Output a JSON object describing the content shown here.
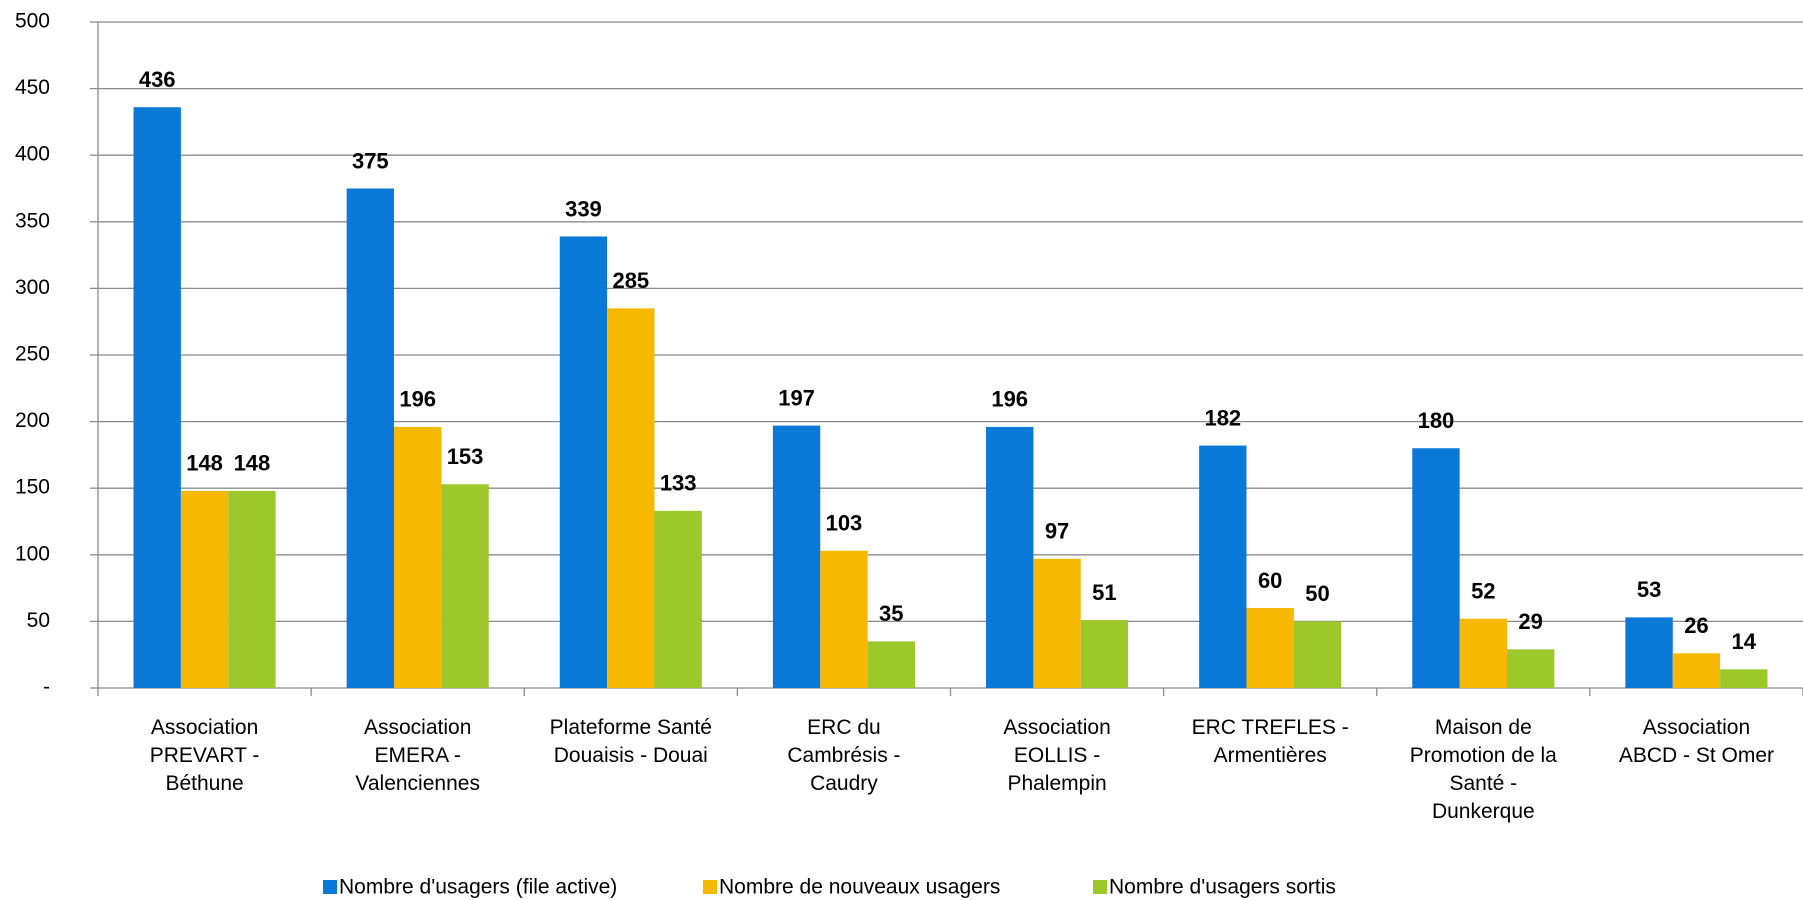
{
  "chart_data": {
    "type": "bar",
    "categories": [
      "Association\nPREVART -\nBéthune",
      "Association\nEMERA -\nValenciennes",
      "Plateforme Santé\nDouaisis - Douai",
      "ERC du\nCambrésis -\nCaudry",
      "Association\nEOLLIS -\nPhalempin",
      "ERC TREFLES -\nArmentières",
      "Maison de\nPromotion de la\nSanté -\nDunkerque",
      "Association\nABCD - St Omer"
    ],
    "series": [
      {
        "name": "Nombre d'usagers (file active)",
        "color": "#0a78d6",
        "values": [
          436,
          375,
          339,
          197,
          196,
          182,
          180,
          53
        ]
      },
      {
        "name": "Nombre de nouveaux usagers",
        "color": "#f6b800",
        "values": [
          148,
          196,
          285,
          103,
          97,
          60,
          52,
          26
        ]
      },
      {
        "name": "Nombre d'usagers sortis",
        "color": "#9cc82b",
        "values": [
          148,
          153,
          133,
          35,
          51,
          50,
          29,
          14
        ]
      }
    ],
    "ylim": [
      0,
      500
    ],
    "yticks": [
      {
        "value": 0,
        "label": "-"
      },
      50,
      100,
      150,
      200,
      250,
      300,
      350,
      400,
      450,
      500
    ],
    "grid": true,
    "legend": "bottom"
  }
}
